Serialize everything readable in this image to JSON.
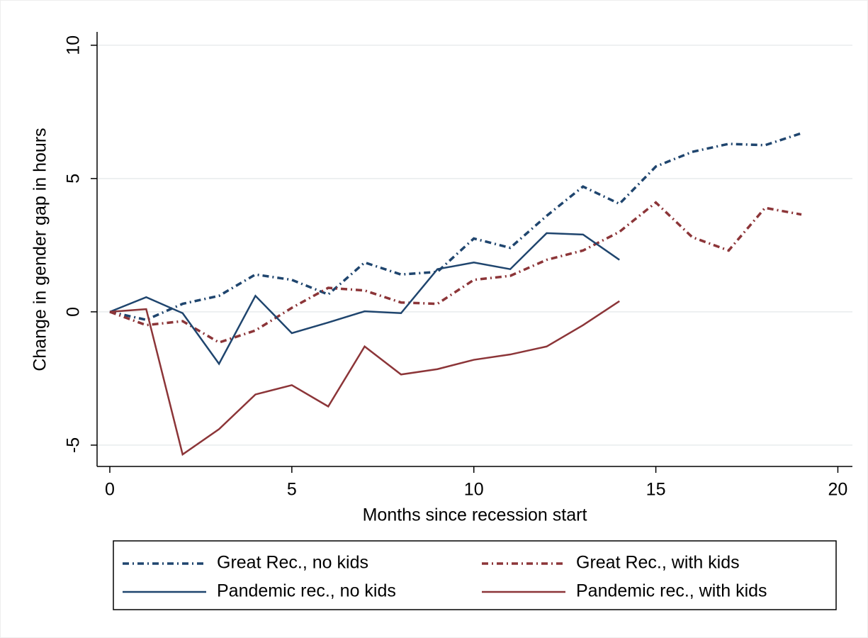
{
  "chart_data": {
    "type": "line",
    "x_label": "Months since recession start",
    "y_label": "Change in gender gap in hours",
    "x": [
      0,
      1,
      2,
      3,
      4,
      5,
      6,
      7,
      8,
      9,
      10,
      11,
      12,
      13,
      14,
      15,
      16,
      17,
      18,
      19
    ],
    "xlim": [
      -0.35,
      20.4
    ],
    "xticks": [
      0,
      5,
      10,
      15,
      20
    ],
    "ylim": [
      -5.8,
      10.5
    ],
    "yticks": [
      -5,
      0,
      5,
      10
    ],
    "grid": true,
    "series": [
      {
        "name": "Great Rec., no kids",
        "color": "#1f456e",
        "style": "dashdot",
        "values": [
          0,
          -0.3,
          0.3,
          0.6,
          1.4,
          1.2,
          0.65,
          1.85,
          1.4,
          1.5,
          2.75,
          2.4,
          3.6,
          4.7,
          4.05,
          5.45,
          6.0,
          6.3,
          6.25,
          6.7
        ]
      },
      {
        "name": "Great Rec., with kids",
        "color": "#8c3538",
        "style": "dashdot",
        "values": [
          0,
          -0.5,
          -0.35,
          -1.15,
          -0.7,
          0.15,
          0.9,
          0.8,
          0.35,
          0.3,
          1.2,
          1.35,
          1.95,
          2.3,
          3.0,
          4.1,
          2.8,
          2.3,
          3.9,
          3.65
        ]
      },
      {
        "name": "Pandemic rec., no kids",
        "color": "#1f456e",
        "style": "solid",
        "values": [
          0,
          0.55,
          -0.05,
          -1.95,
          0.6,
          -0.8,
          -0.4,
          0.02,
          -0.05,
          1.6,
          1.85,
          1.6,
          2.95,
          2.9,
          1.95,
          null,
          null,
          null,
          null,
          null
        ]
      },
      {
        "name": "Pandemic rec., with kids",
        "color": "#8c3538",
        "style": "solid",
        "values": [
          0,
          0.1,
          -5.35,
          -4.4,
          -3.1,
          -2.75,
          -3.55,
          -1.3,
          -2.35,
          -2.15,
          -1.8,
          -1.6,
          -1.3,
          -0.5,
          0.4,
          null,
          null,
          null,
          null,
          null
        ]
      }
    ]
  }
}
